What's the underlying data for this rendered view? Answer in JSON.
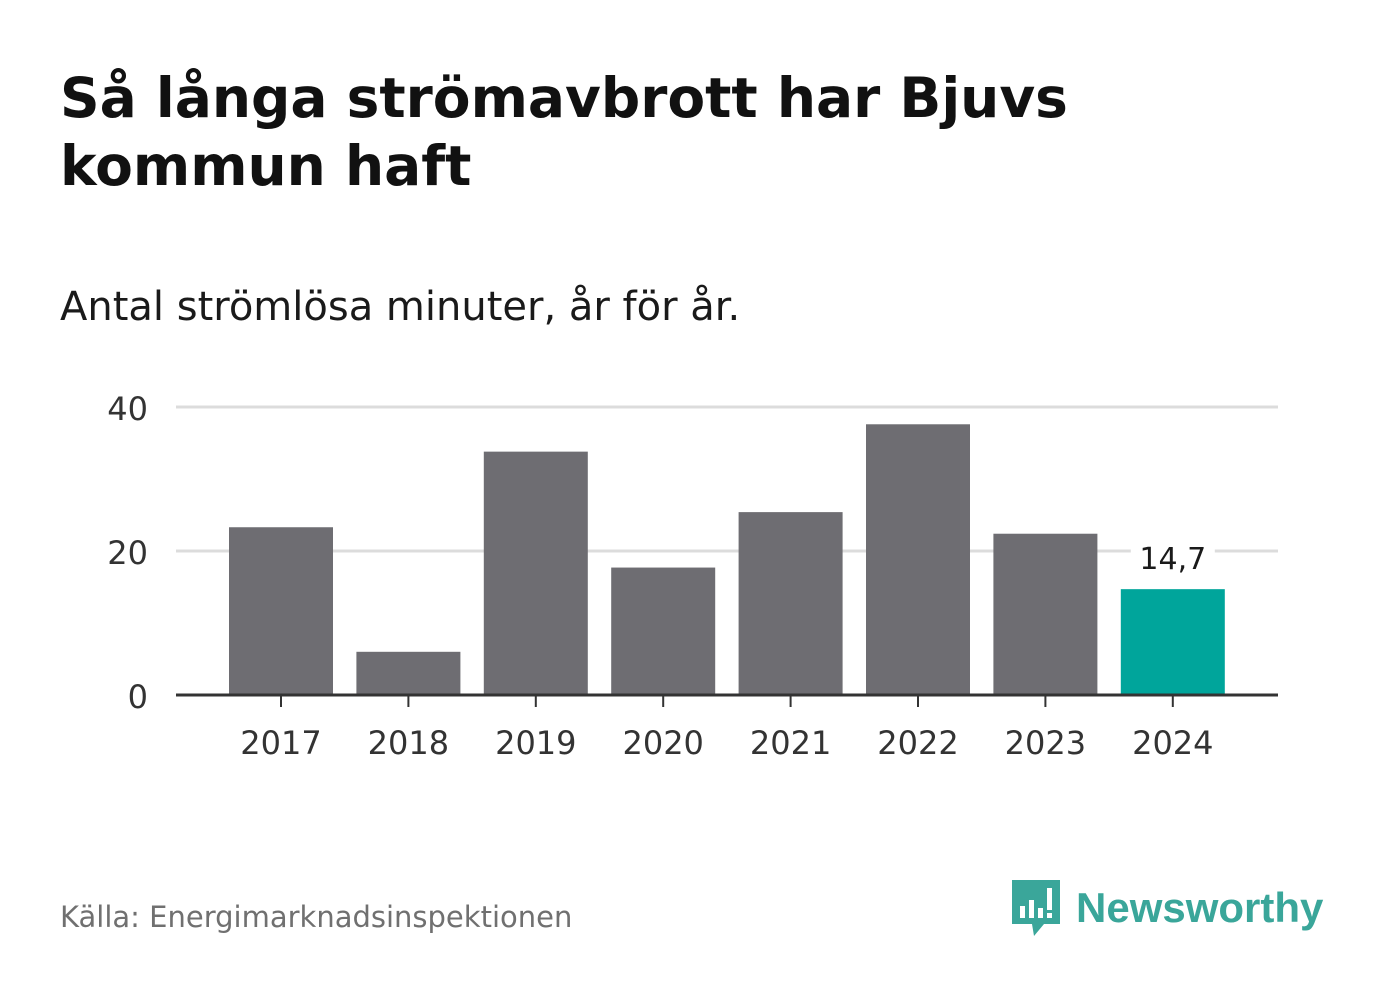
{
  "header": {
    "title": "Så långa strömavbrott har Bjuvs kommun haft",
    "subtitle": "Antal strömlösa minuter, år för år."
  },
  "chart_data": {
    "type": "bar",
    "title": "Så långa strömavbrott har Bjuvs kommun haft",
    "subtitle": "Antal strömlösa minuter, år för år.",
    "categories": [
      "2017",
      "2018",
      "2019",
      "2020",
      "2021",
      "2022",
      "2023",
      "2024"
    ],
    "values": [
      23.3,
      6.0,
      33.8,
      17.7,
      25.4,
      37.6,
      22.4,
      14.7
    ],
    "ylim": [
      0,
      40
    ],
    "yticks": [
      "0",
      "20",
      "40"
    ],
    "ytick_values": [
      0,
      20,
      40
    ],
    "grid": true,
    "bar_color": "#6e6d72",
    "highlight_color": "#00a59b",
    "highlight_index": 7,
    "data_labels": [
      {
        "index": 7,
        "text": "14,7"
      }
    ]
  },
  "footer": {
    "source": "Källa: Energimarknadsinspektionen",
    "brand": "Newsworthy",
    "brand_icon": "newsworthy-logo-icon",
    "brand_color": "#3aa69a"
  }
}
